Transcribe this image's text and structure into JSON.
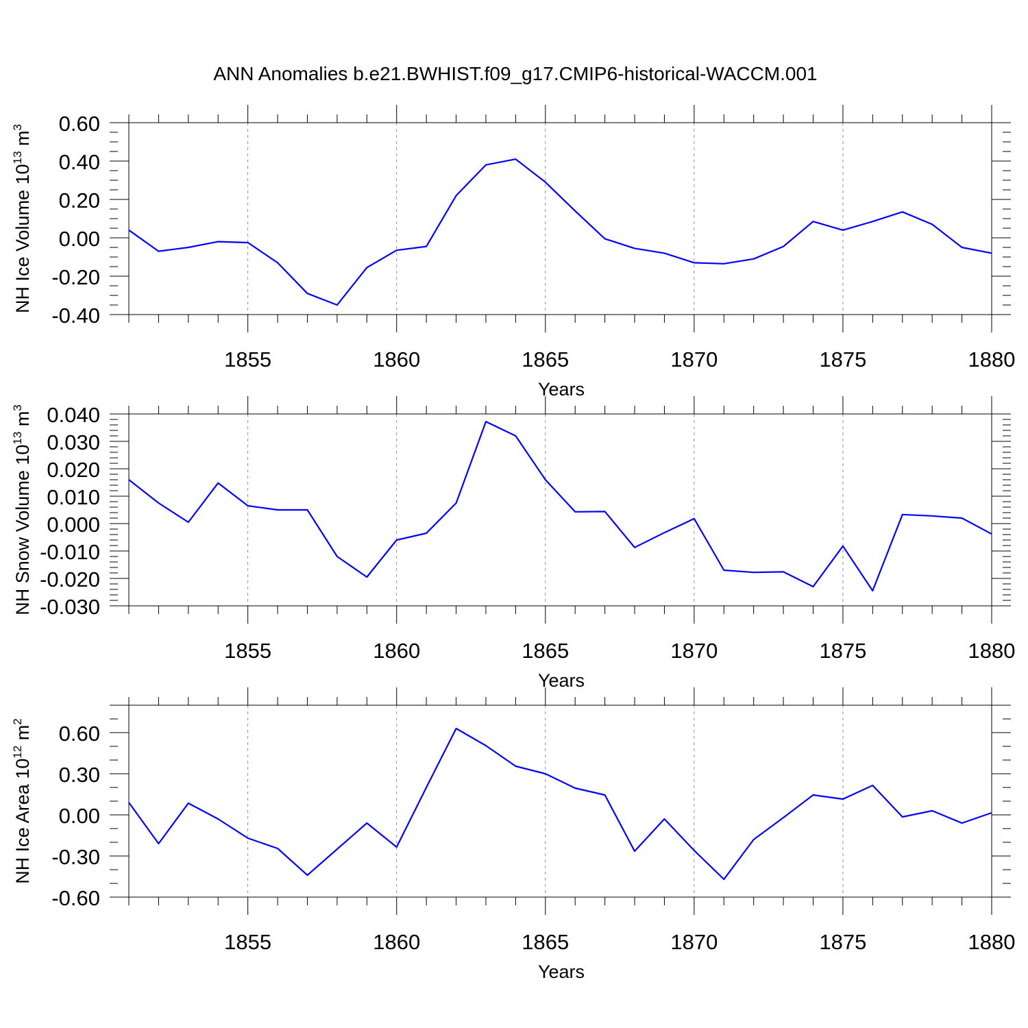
{
  "figure": {
    "title": "ANN Anomalies b.e21.BWHIST.f09_g17.CMIP6-historical-WACCM.001",
    "line_color": "#0000ff"
  },
  "chart_data": [
    {
      "type": "line",
      "ylabel": "NH Ice Volume 10",
      "ylabel_sup": "13",
      "ylabel_unit": "m",
      "ylabel_unit_sup": "3",
      "xlabel": "Years",
      "xlim": [
        1851,
        1880
      ],
      "ylim": [
        -0.4,
        0.6
      ],
      "yticks": [
        -0.4,
        -0.2,
        0.0,
        0.2,
        0.4,
        0.6
      ],
      "ytick_labels": [
        "-0.40",
        "-0.20",
        "0.00",
        "0.20",
        "0.40",
        "0.60"
      ],
      "yminor_step": 0.05,
      "xticks": [
        1855,
        1860,
        1865,
        1870,
        1875,
        1880
      ],
      "xtick_labels": [
        "1855",
        "1860",
        "1865",
        "1870",
        "1875",
        "1880"
      ],
      "x": [
        1851,
        1852,
        1853,
        1854,
        1855,
        1856,
        1857,
        1858,
        1859,
        1860,
        1861,
        1862,
        1863,
        1864,
        1865,
        1866,
        1867,
        1868,
        1869,
        1870,
        1871,
        1872,
        1873,
        1874,
        1875,
        1876,
        1877,
        1878,
        1879,
        1880
      ],
      "values": [
        0.04,
        -0.07,
        -0.05,
        -0.02,
        -0.025,
        -0.13,
        -0.29,
        -0.35,
        -0.155,
        -0.065,
        -0.045,
        0.22,
        0.38,
        0.41,
        0.29,
        0.14,
        -0.005,
        -0.055,
        -0.08,
        -0.13,
        -0.135,
        -0.11,
        -0.045,
        0.085,
        0.04,
        0.085,
        0.135,
        0.07,
        -0.05,
        -0.08
      ]
    },
    {
      "type": "line",
      "ylabel": "NH Snow Volume 10",
      "ylabel_sup": "13",
      "ylabel_unit": "m",
      "ylabel_unit_sup": "3",
      "xlabel": "Years",
      "xlim": [
        1851,
        1880
      ],
      "ylim": [
        -0.03,
        0.04
      ],
      "yticks": [
        -0.03,
        -0.02,
        -0.01,
        0.0,
        0.01,
        0.02,
        0.03,
        0.04
      ],
      "ytick_labels": [
        "-0.030",
        "-0.020",
        "-0.010",
        "0.000",
        "0.010",
        "0.020",
        "0.030",
        "0.040"
      ],
      "yminor_step": 0.002,
      "xticks": [
        1855,
        1860,
        1865,
        1870,
        1875,
        1880
      ],
      "xtick_labels": [
        "1855",
        "1860",
        "1865",
        "1870",
        "1875",
        "1880"
      ],
      "x": [
        1851,
        1852,
        1853,
        1854,
        1855,
        1856,
        1857,
        1858,
        1859,
        1860,
        1861,
        1862,
        1863,
        1864,
        1865,
        1866,
        1867,
        1868,
        1869,
        1870,
        1871,
        1872,
        1873,
        1874,
        1875,
        1876,
        1877,
        1878,
        1879,
        1880
      ],
      "values": [
        0.016,
        0.0075,
        0.0005,
        0.0148,
        0.0065,
        0.005,
        0.005,
        -0.012,
        -0.0195,
        -0.006,
        -0.0035,
        0.0075,
        0.0372,
        0.032,
        0.016,
        0.0043,
        0.0044,
        -0.0087,
        -0.0033,
        0.0018,
        -0.017,
        -0.0178,
        -0.0176,
        -0.023,
        -0.0082,
        -0.0245,
        0.0033,
        0.0028,
        0.002,
        -0.0038
      ]
    },
    {
      "type": "line",
      "ylabel": "NH Ice Area 10",
      "ylabel_sup": "12",
      "ylabel_unit": "m",
      "ylabel_unit_sup": "2",
      "xlabel": "Years",
      "xlim": [
        1851,
        1880
      ],
      "ylim": [
        -0.6,
        0.8
      ],
      "yticks": [
        -0.6,
        -0.3,
        0.0,
        0.3,
        0.6
      ],
      "ytick_labels": [
        "-0.60",
        "-0.30",
        "0.00",
        "0.30",
        "0.60"
      ],
      "yminor_step": 0.1,
      "xticks": [
        1855,
        1860,
        1865,
        1870,
        1875,
        1880
      ],
      "xtick_labels": [
        "1855",
        "1860",
        "1865",
        "1870",
        "1875",
        "1880"
      ],
      "x": [
        1851,
        1852,
        1853,
        1854,
        1855,
        1856,
        1857,
        1858,
        1859,
        1860,
        1861,
        1862,
        1863,
        1864,
        1865,
        1866,
        1867,
        1868,
        1869,
        1870,
        1871,
        1872,
        1873,
        1874,
        1875,
        1876,
        1877,
        1878,
        1879,
        1880
      ],
      "values": [
        0.09,
        -0.21,
        0.085,
        -0.03,
        -0.17,
        -0.245,
        -0.44,
        -0.25,
        -0.06,
        -0.235,
        0.2,
        0.63,
        0.505,
        0.355,
        0.3,
        0.195,
        0.145,
        -0.265,
        -0.03,
        -0.26,
        -0.47,
        -0.18,
        -0.02,
        0.145,
        0.115,
        0.215,
        -0.015,
        0.03,
        -0.06,
        0.015
      ]
    }
  ]
}
